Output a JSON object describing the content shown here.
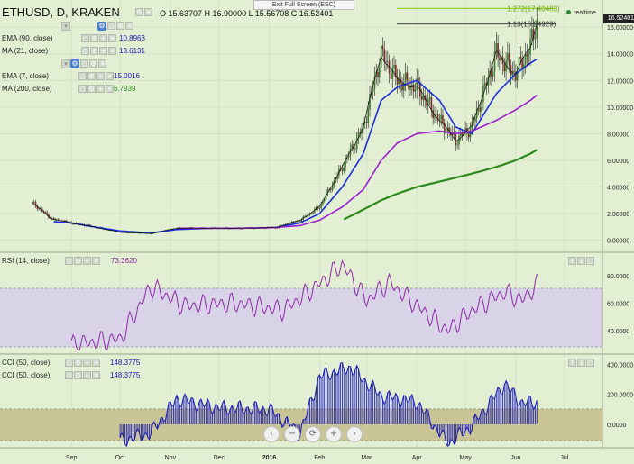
{
  "header": {
    "symbol": "ETHUSD, D, KRAKEN",
    "ohlc": "O 15.63707  H 16.90000  L 15.56708  C 16.52401",
    "tooltip": "Exit Full Screen (ESC)",
    "realtime": "realtime",
    "last_price": "16.52401"
  },
  "legends": [
    {
      "label": "EMA (90, close)",
      "value": "10.8963",
      "color": "#1a1ab8"
    },
    {
      "label": "MA (21, close)",
      "value": "13.6131",
      "color": "#1a1ab8"
    },
    {
      "label": "EMA (7, close)",
      "value": "15.0016",
      "color": "#1a1ab8"
    },
    {
      "label": "MA (200, close)",
      "value": "6.7939",
      "color": "#1a1ab8"
    }
  ],
  "fib": [
    {
      "label": "1.272(17.40483)",
      "color": "#8fd12a"
    },
    {
      "label": "1.13(16.24929)",
      "color": "#555555"
    }
  ],
  "rsi": {
    "label": "RSI (14, close)",
    "value": "73.3620",
    "color": "#8e2aa8"
  },
  "cci": [
    {
      "label": "CCI (50, close)",
      "value": "148.3775",
      "color": "#1a1ab8"
    },
    {
      "label": "CCI (50, close)",
      "value": "148.3775",
      "color": "#1a1ab8"
    }
  ],
  "axes": {
    "price_ticks": [
      "16.00000",
      "14.00000",
      "12.00000",
      "10.00000",
      "8.00000",
      "6.00000",
      "4.00000",
      "2.00000",
      "0.00000"
    ],
    "rsi_ticks": [
      "80.0000",
      "60.0000",
      "40.0000"
    ],
    "cci_ticks": [
      "400.0000",
      "200.0000",
      "0.0000"
    ],
    "months": [
      "Sep",
      "Oct",
      "Nov",
      "Dec",
      "2016",
      "Feb",
      "Mar",
      "Apr",
      "May",
      "Jun",
      "Jul"
    ]
  },
  "nav_buttons": [
    "‹",
    "−",
    "⟳",
    "+",
    "›"
  ],
  "colors": {
    "ma200": "#2d8a1e",
    "ema90": "#9a1fd0",
    "ma21": "#1a2fd8",
    "ema7": "#111111",
    "rsi": "#8e2aa8",
    "cci": "#1a1ab8",
    "cci_band": "#c9c596",
    "rsi_band": "#d9d3e8"
  },
  "chart_data": [
    {
      "type": "line",
      "title": "ETHUSD, D, KRAKEN",
      "xlabel": "",
      "ylabel": "",
      "x": [
        "2015-08-08",
        "2015-08-20",
        "2015-09-01",
        "2015-09-15",
        "2015-10-01",
        "2015-10-20",
        "2015-11-05",
        "2015-11-25",
        "2015-12-15",
        "2016-01-05",
        "2016-01-20",
        "2016-02-01",
        "2016-02-15",
        "2016-02-28",
        "2016-03-10",
        "2016-03-20",
        "2016-04-01",
        "2016-04-15",
        "2016-04-25",
        "2016-05-05",
        "2016-05-20",
        "2016-06-01",
        "2016-06-10",
        "2016-06-14"
      ],
      "series": [
        {
          "name": "Price",
          "values": [
            2.8,
            1.6,
            1.3,
            1.0,
            0.6,
            0.5,
            0.9,
            0.9,
            0.9,
            0.95,
            1.5,
            2.5,
            5.5,
            8.5,
            14.0,
            12.0,
            11.5,
            9.0,
            7.5,
            8.5,
            14.0,
            12.5,
            14.5,
            16.52
          ]
        },
        {
          "name": "MA (21, close)",
          "values": [
            null,
            1.4,
            1.3,
            1.0,
            0.7,
            0.55,
            0.8,
            0.9,
            0.9,
            0.95,
            1.3,
            2.0,
            4.0,
            6.5,
            10.5,
            11.5,
            12.0,
            10.5,
            8.5,
            8.0,
            11.0,
            12.5,
            13.3,
            13.61
          ]
        },
        {
          "name": "EMA (90, close)",
          "values": [
            null,
            null,
            null,
            null,
            null,
            null,
            0.9,
            0.9,
            0.9,
            0.95,
            1.1,
            1.5,
            2.5,
            3.8,
            6.0,
            7.3,
            8.0,
            8.2,
            8.0,
            8.2,
            9.0,
            9.8,
            10.5,
            10.9
          ]
        },
        {
          "name": "MA (200, close)",
          "values": [
            null,
            null,
            null,
            null,
            null,
            null,
            null,
            null,
            null,
            null,
            null,
            null,
            1.5,
            2.3,
            3.0,
            3.5,
            4.0,
            4.4,
            4.7,
            5.0,
            5.5,
            6.0,
            6.5,
            6.79
          ]
        }
      ],
      "ylim": [
        -0.5,
        17.5
      ]
    },
    {
      "type": "line",
      "title": "RSI (14, close)",
      "x": [
        "2015-09-01",
        "2015-10-01",
        "2015-10-20",
        "2015-11-10",
        "2015-12-10",
        "2016-01-10",
        "2016-02-01",
        "2016-02-15",
        "2016-03-01",
        "2016-03-15",
        "2016-04-01",
        "2016-04-20",
        "2016-05-05",
        "2016-05-25",
        "2016-06-05",
        "2016-06-14"
      ],
      "values": [
        30,
        34,
        72,
        58,
        60,
        55,
        74,
        88,
        62,
        75,
        58,
        40,
        55,
        68,
        62,
        73.362
      ],
      "ylim": [
        25,
        95
      ]
    },
    {
      "type": "bar",
      "title": "CCI (50, close)",
      "x": [
        "2015-10-01",
        "2015-10-20",
        "2015-11-05",
        "2015-12-01",
        "2016-01-01",
        "2016-01-20",
        "2016-02-01",
        "2016-02-20",
        "2016-03-10",
        "2016-04-01",
        "2016-04-20",
        "2016-05-05",
        "2016-05-25",
        "2016-06-05",
        "2016-06-14"
      ],
      "values": [
        -110,
        -60,
        170,
        110,
        100,
        -60,
        320,
        380,
        190,
        150,
        -130,
        -10,
        270,
        140,
        148.3775
      ],
      "ylim": [
        -150,
        450
      ]
    }
  ]
}
